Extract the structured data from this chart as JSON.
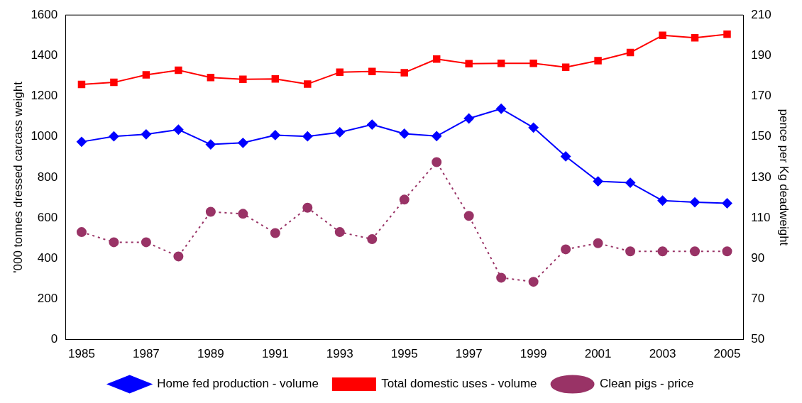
{
  "chart_data": {
    "type": "line",
    "ylabel": "'000 tonnes dressed carcass weight",
    "y2label": "pence per Kg deadweight",
    "categories": [
      "1985",
      null,
      "1987",
      null,
      "1989",
      null,
      "1991",
      null,
      "1993",
      null,
      "1995",
      null,
      "1997",
      null,
      "1999",
      null,
      "2001",
      null,
      "2003",
      null,
      "2005"
    ],
    "series": [
      {
        "name": "Home fed production - volume",
        "color": "#0000ff",
        "marker": "diamond",
        "line_style": "solid",
        "values": [
          975,
          1002,
          1012,
          1035,
          962,
          970,
          1008,
          1002,
          1022,
          1060,
          1015,
          1003,
          1090,
          1138,
          1045,
          903,
          780,
          773,
          685,
          677,
          672
        ]
      },
      {
        "name": "Total domestic uses - volume",
        "color": "#ff0000",
        "marker": "square",
        "line_style": "solid",
        "values": [
          1258,
          1268,
          1305,
          1328,
          1292,
          1283,
          1285,
          1260,
          1318,
          1322,
          1316,
          1383,
          1360,
          1362,
          1362,
          1343,
          1375,
          1415,
          1500,
          1488,
          1505
        ]
      },
      {
        "name": "Clean pigs - price",
        "color": "#993366",
        "marker": "circle",
        "line_style": "dotted",
        "axis": "y2",
        "values": [
          103,
          98,
          98,
          91,
          113,
          112,
          102.5,
          115,
          103,
          99.5,
          119,
          137.5,
          111,
          80.5,
          78.5,
          94.5,
          97.5,
          93.5,
          93.5,
          93.5,
          93.5
        ]
      }
    ],
    "ylim": [
      0,
      1600
    ],
    "yticks": [
      0,
      200,
      400,
      600,
      800,
      1000,
      1200,
      1400,
      1600
    ],
    "y2lim": [
      50,
      210
    ],
    "y2ticks": [
      50,
      70,
      90,
      110,
      130,
      150,
      170,
      190,
      210
    ],
    "grid": false,
    "legend": "bottom"
  }
}
